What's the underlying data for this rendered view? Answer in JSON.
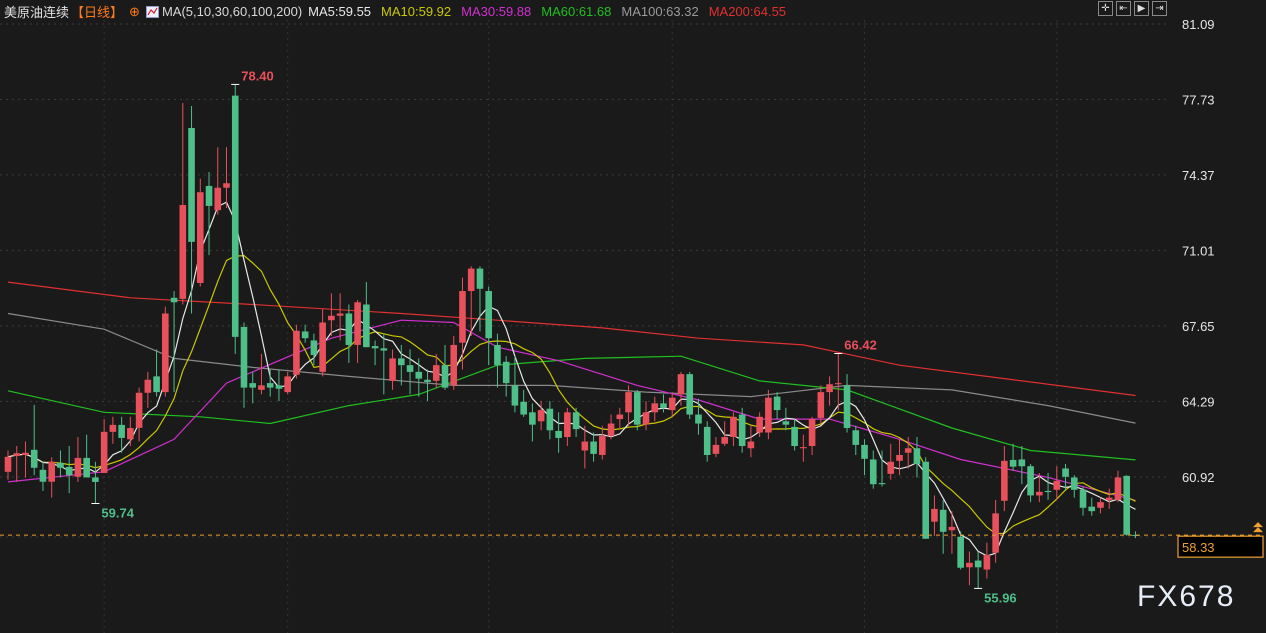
{
  "header": {
    "symbol": "美原油连续",
    "period": "【日线】",
    "ma_params": "MA(5,10,30,60,100,200)",
    "ma5": "MA5:59.55",
    "ma10": "MA10:59.92",
    "ma30": "MA30:59.88",
    "ma60": "MA60:61.68",
    "ma100": "MA100:63.32",
    "ma200": "MA200:64.55"
  },
  "toolbar": {
    "icons": [
      "crosshair-icon",
      "zoom-start-icon",
      "play-icon",
      "jump-end-icon"
    ]
  },
  "watermark": "FX678",
  "colors": {
    "up": "#e8505b",
    "down": "#4fbf8a",
    "ma5": "#e8e8e8",
    "ma10": "#c8c800",
    "ma30": "#d030d0",
    "ma60": "#20c020",
    "ma100": "#8a8a8a",
    "ma200": "#e03030",
    "period": "#ff7a1a",
    "last_price": "#f0a030"
  },
  "chart_data": {
    "type": "candlestick",
    "price_ticks": [
      "81.09",
      "77.73",
      "74.37",
      "71.01",
      "67.65",
      "64.29",
      "60.92"
    ],
    "last_price": "58.33",
    "annotations": [
      {
        "label": "78.40",
        "bar": 26,
        "price": 78.4,
        "kind": "high"
      },
      {
        "label": "59.74",
        "bar": 10,
        "price": 59.74,
        "kind": "low"
      },
      {
        "label": "66.42",
        "bar": 95,
        "price": 66.42,
        "kind": "high"
      },
      {
        "label": "55.96",
        "bar": 111,
        "price": 55.96,
        "kind": "low"
      }
    ],
    "ohlc": [
      [
        61.15,
        62.1,
        60.8,
        61.82
      ],
      [
        61.86,
        62.3,
        60.7,
        61.98
      ],
      [
        61.9,
        62.5,
        60.9,
        62.0
      ],
      [
        62.13,
        64.13,
        61.0,
        61.33
      ],
      [
        61.24,
        61.6,
        60.3,
        60.71
      ],
      [
        60.71,
        61.8,
        60.0,
        61.6
      ],
      [
        61.55,
        62.1,
        60.9,
        61.33
      ],
      [
        61.37,
        62.3,
        60.2,
        61.0
      ],
      [
        60.93,
        62.7,
        60.7,
        61.77
      ],
      [
        61.77,
        62.8,
        60.9,
        60.9
      ],
      [
        60.9,
        61.6,
        59.74,
        60.7
      ],
      [
        61.1,
        63.5,
        61.1,
        62.93
      ],
      [
        62.93,
        63.6,
        62.4,
        63.24
      ],
      [
        63.24,
        63.6,
        62.0,
        62.66
      ],
      [
        62.6,
        63.6,
        62.3,
        63.1
      ],
      [
        63.11,
        64.9,
        62.5,
        64.67
      ],
      [
        64.67,
        65.6,
        64.0,
        65.25
      ],
      [
        65.4,
        66.6,
        64.5,
        64.7
      ],
      [
        64.7,
        68.5,
        64.5,
        68.2
      ],
      [
        68.9,
        69.2,
        64.7,
        68.7
      ],
      [
        68.85,
        77.57,
        68.6,
        73.03
      ],
      [
        76.46,
        77.44,
        68.2,
        71.39
      ],
      [
        69.56,
        74.2,
        69.4,
        73.6
      ],
      [
        73.88,
        74.5,
        70.8,
        72.99
      ],
      [
        72.8,
        75.6,
        72.6,
        73.8
      ],
      [
        73.8,
        75.6,
        72.9,
        74.0
      ],
      [
        77.9,
        78.4,
        66.4,
        67.16
      ],
      [
        67.6,
        67.8,
        64.0,
        64.9
      ],
      [
        65.1,
        65.6,
        64.2,
        64.9
      ],
      [
        64.8,
        66.4,
        64.6,
        65.0
      ],
      [
        65.1,
        65.7,
        64.5,
        64.9
      ],
      [
        65.0,
        65.7,
        64.3,
        64.85
      ],
      [
        64.7,
        65.6,
        64.6,
        65.4
      ],
      [
        65.47,
        67.7,
        65.3,
        67.43
      ],
      [
        67.4,
        67.7,
        66.9,
        67.1
      ],
      [
        67.0,
        67.3,
        65.9,
        66.35
      ],
      [
        65.6,
        68.4,
        65.4,
        67.8
      ],
      [
        67.9,
        69.1,
        67.2,
        68.1
      ],
      [
        68.1,
        69.1,
        67.0,
        68.2
      ],
      [
        68.2,
        68.6,
        66.0,
        66.8
      ],
      [
        66.8,
        68.8,
        66.0,
        68.7
      ],
      [
        68.6,
        69.6,
        66.7,
        66.7
      ],
      [
        66.75,
        67.0,
        65.9,
        66.65
      ],
      [
        66.65,
        67.3,
        64.6,
        66.55
      ],
      [
        65.2,
        66.6,
        64.8,
        66.2
      ],
      [
        66.2,
        66.8,
        65.0,
        65.9
      ],
      [
        65.9,
        66.6,
        64.6,
        65.6
      ],
      [
        65.6,
        66.2,
        64.5,
        65.3
      ],
      [
        65.25,
        65.7,
        64.3,
        65.15
      ],
      [
        65.2,
        66.4,
        64.9,
        65.9
      ],
      [
        65.9,
        66.8,
        64.8,
        64.9
      ],
      [
        65.0,
        67.2,
        64.8,
        66.8
      ],
      [
        66.9,
        69.8,
        65.7,
        69.2
      ],
      [
        69.2,
        70.3,
        67.2,
        70.2
      ],
      [
        70.2,
        70.3,
        67.4,
        69.3
      ],
      [
        69.2,
        69.4,
        65.9,
        67.1
      ],
      [
        66.8,
        67.3,
        64.9,
        65.9
      ],
      [
        66.05,
        66.3,
        64.5,
        65.1
      ],
      [
        65.0,
        66.3,
        63.8,
        64.1
      ],
      [
        64.27,
        64.8,
        63.6,
        63.7
      ],
      [
        63.8,
        64.2,
        62.5,
        63.25
      ],
      [
        63.4,
        64.3,
        63.0,
        63.9
      ],
      [
        63.96,
        64.3,
        62.6,
        63.0
      ],
      [
        62.97,
        63.8,
        62.0,
        62.66
      ],
      [
        62.7,
        64.0,
        62.3,
        63.8
      ],
      [
        63.8,
        64.0,
        62.7,
        63.05
      ],
      [
        62.1,
        63.2,
        61.3,
        62.5
      ],
      [
        62.5,
        62.9,
        61.6,
        61.95
      ],
      [
        61.9,
        63.2,
        61.7,
        62.75
      ],
      [
        62.75,
        63.7,
        62.6,
        63.3
      ],
      [
        63.5,
        64.0,
        63.1,
        63.7
      ],
      [
        63.8,
        65.0,
        63.2,
        64.7
      ],
      [
        64.7,
        64.8,
        63.0,
        63.25
      ],
      [
        63.25,
        64.3,
        63.0,
        63.8
      ],
      [
        63.8,
        64.5,
        63.4,
        64.2
      ],
      [
        64.2,
        64.6,
        63.8,
        64.0
      ],
      [
        63.9,
        64.7,
        63.6,
        64.45
      ],
      [
        64.6,
        65.6,
        64.1,
        65.5
      ],
      [
        65.5,
        65.6,
        63.5,
        63.7
      ],
      [
        63.7,
        64.4,
        62.8,
        63.3
      ],
      [
        63.15,
        63.4,
        61.6,
        61.9
      ],
      [
        61.95,
        62.7,
        61.8,
        62.35
      ],
      [
        62.4,
        63.4,
        62.3,
        62.7
      ],
      [
        62.7,
        63.8,
        62.3,
        63.6
      ],
      [
        63.7,
        64.0,
        62.0,
        62.3
      ],
      [
        62.2,
        63.2,
        61.8,
        62.5
      ],
      [
        62.9,
        63.8,
        62.7,
        63.6
      ],
      [
        62.9,
        64.8,
        62.6,
        64.45
      ],
      [
        64.5,
        64.7,
        63.5,
        63.9
      ],
      [
        63.4,
        64.0,
        63.0,
        63.25
      ],
      [
        63.15,
        63.5,
        62.1,
        62.3
      ],
      [
        62.2,
        62.8,
        61.6,
        62.25
      ],
      [
        62.3,
        63.6,
        61.9,
        63.5
      ],
      [
        63.55,
        65.0,
        63.3,
        64.7
      ],
      [
        64.7,
        65.4,
        64.1,
        65.05
      ],
      [
        65.05,
        66.42,
        63.9,
        65.1
      ],
      [
        65.0,
        65.5,
        62.9,
        63.1
      ],
      [
        63.0,
        63.2,
        61.9,
        62.35
      ],
      [
        62.35,
        62.6,
        61.0,
        61.73
      ],
      [
        61.7,
        62.1,
        60.4,
        60.6
      ],
      [
        60.65,
        62.1,
        60.5,
        60.6
      ],
      [
        61.06,
        62.4,
        60.8,
        61.6
      ],
      [
        61.64,
        62.6,
        61.0,
        61.9
      ],
      [
        62.0,
        62.7,
        61.3,
        62.2
      ],
      [
        62.2,
        62.7,
        60.9,
        61.5
      ],
      [
        61.6,
        61.8,
        58.17,
        58.17
      ],
      [
        58.93,
        60.1,
        58.3,
        59.5
      ],
      [
        59.46,
        59.9,
        57.5,
        58.48
      ],
      [
        58.55,
        59.4,
        57.5,
        58.7
      ],
      [
        58.26,
        58.5,
        56.8,
        56.88
      ],
      [
        56.9,
        57.6,
        56.1,
        57.1
      ],
      [
        57.2,
        57.6,
        55.96,
        56.9
      ],
      [
        56.8,
        58.0,
        56.4,
        57.45
      ],
      [
        57.55,
        59.9,
        57.1,
        59.3
      ],
      [
        59.86,
        62.3,
        59.4,
        61.64
      ],
      [
        61.68,
        62.4,
        61.2,
        61.38
      ],
      [
        61.7,
        62.3,
        60.6,
        61.4
      ],
      [
        61.4,
        61.5,
        59.8,
        60.1
      ],
      [
        60.1,
        61.1,
        59.8,
        60.26
      ],
      [
        60.3,
        61.1,
        59.9,
        60.25
      ],
      [
        60.35,
        61.4,
        59.9,
        60.75
      ],
      [
        61.3,
        61.5,
        60.3,
        60.93
      ],
      [
        60.9,
        61.0,
        60.0,
        60.35
      ],
      [
        60.35,
        60.5,
        59.2,
        59.55
      ],
      [
        59.6,
        60.0,
        59.2,
        59.4
      ],
      [
        59.55,
        60.0,
        59.3,
        59.8
      ],
      [
        59.9,
        60.4,
        59.5,
        60.0
      ],
      [
        59.9,
        61.2,
        59.8,
        60.9
      ],
      [
        60.97,
        61.0,
        58.3,
        58.35
      ],
      [
        58.34,
        58.5,
        58.2,
        58.33
      ]
    ],
    "ma_lines": {
      "ma30": [
        [
          0,
          60.7
        ],
        [
          11,
          61.15
        ],
        [
          19,
          62.6
        ],
        [
          25,
          65.1
        ],
        [
          37,
          67.1
        ],
        [
          45,
          67.9
        ],
        [
          51,
          67.8
        ],
        [
          56,
          66.7
        ],
        [
          63,
          66.1
        ],
        [
          72,
          65.0
        ],
        [
          79,
          64.35
        ],
        [
          86,
          63.5
        ],
        [
          94,
          63.5
        ],
        [
          102,
          62.6
        ],
        [
          109,
          61.7
        ],
        [
          119,
          60.9
        ],
        [
          129,
          59.88
        ]
      ],
      "ma60": [
        [
          0,
          64.76
        ],
        [
          11,
          63.8
        ],
        [
          22,
          63.6
        ],
        [
          30,
          63.3
        ],
        [
          39,
          64.1
        ],
        [
          47,
          64.6
        ],
        [
          56,
          65.9
        ],
        [
          66,
          66.2
        ],
        [
          77,
          66.3
        ],
        [
          86,
          65.2
        ],
        [
          96,
          64.8
        ],
        [
          108,
          63.1
        ],
        [
          117,
          62.1
        ],
        [
          129,
          61.68
        ]
      ],
      "ma100": [
        [
          0,
          68.2
        ],
        [
          11,
          67.5
        ],
        [
          19,
          66.2
        ],
        [
          28,
          65.8
        ],
        [
          39,
          65.4
        ],
        [
          51,
          65.0
        ],
        [
          62,
          65.0
        ],
        [
          73,
          64.7
        ],
        [
          85,
          64.5
        ],
        [
          96,
          65.0
        ],
        [
          108,
          64.8
        ],
        [
          119,
          64.1
        ],
        [
          129,
          63.32
        ]
      ],
      "ma200": [
        [
          0,
          69.6
        ],
        [
          14,
          68.9
        ],
        [
          28,
          68.6
        ],
        [
          45,
          68.2
        ],
        [
          56,
          67.9
        ],
        [
          68,
          67.56
        ],
        [
          79,
          67.1
        ],
        [
          91,
          66.8
        ],
        [
          102,
          65.9
        ],
        [
          114,
          65.3
        ],
        [
          129,
          64.55
        ]
      ]
    }
  }
}
